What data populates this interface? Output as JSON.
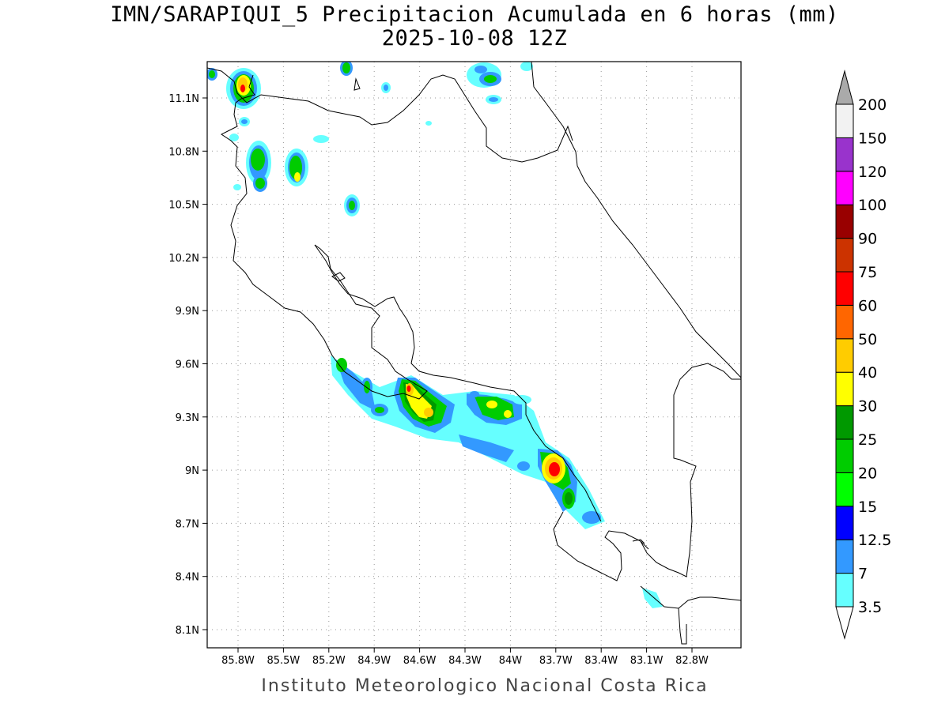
{
  "header": {
    "title": "IMN/SARAPIQUI_5 Precipitacion Acumulada en 6 horas (mm)",
    "subtitle": "2025-10-08 12Z"
  },
  "footer": {
    "credit": "Instituto Meteorologico Nacional Costa Rica"
  },
  "map": {
    "lat_labels": [
      "11.1N",
      "10.8N",
      "10.5N",
      "10.2N",
      "9.9N",
      "9.6N",
      "9.3N",
      "9N",
      "8.7N",
      "8.4N",
      "8.1N"
    ],
    "lon_labels": [
      "85.8W",
      "85.5W",
      "85.2W",
      "84.9W",
      "84.6W",
      "84.3W",
      "84W",
      "83.7W",
      "83.4W",
      "83.1W",
      "82.8W"
    ],
    "grid": "dotted"
  },
  "colorbar": {
    "levels": [
      "3.5",
      "7",
      "12.5",
      "15",
      "20",
      "25",
      "30",
      "40",
      "50",
      "60",
      "75",
      "90",
      "100",
      "120",
      "150",
      "200"
    ],
    "colors": [
      "#66ffff",
      "#3399ff",
      "#0000ff",
      "#00ff00",
      "#00cc00",
      "#009900",
      "#ffff00",
      "#ffcc00",
      "#ff6600",
      "#ff0000",
      "#cc3300",
      "#990000",
      "#ff00ff",
      "#9933cc",
      "#f2f2f2",
      "#aaaaaa"
    ]
  }
}
